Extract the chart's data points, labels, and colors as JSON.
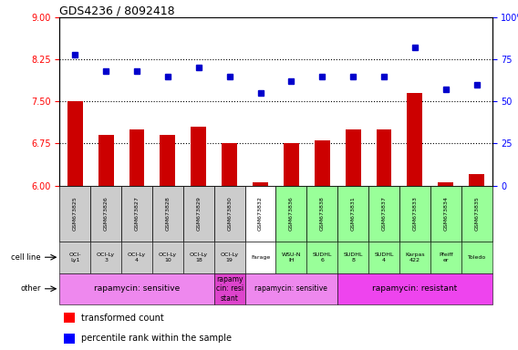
{
  "title": "GDS4236 / 8092418",
  "samples": [
    "GSM673825",
    "GSM673826",
    "GSM673827",
    "GSM673828",
    "GSM673829",
    "GSM673830",
    "GSM673832",
    "GSM673836",
    "GSM673838",
    "GSM673831",
    "GSM673837",
    "GSM673833",
    "GSM673834",
    "GSM673835"
  ],
  "bar_values": [
    7.5,
    6.9,
    7.0,
    6.9,
    7.05,
    6.75,
    6.05,
    6.75,
    6.8,
    7.0,
    7.0,
    7.65,
    6.05,
    6.2
  ],
  "dot_values": [
    78,
    68,
    68,
    65,
    70,
    65,
    55,
    62,
    65,
    65,
    65,
    82,
    57,
    60
  ],
  "ylim_left": [
    6,
    9
  ],
  "ylim_right": [
    0,
    100
  ],
  "yticks_left": [
    6,
    6.75,
    7.5,
    8.25,
    9
  ],
  "yticks_right": [
    0,
    25,
    50,
    75,
    100
  ],
  "hlines": [
    6.75,
    7.5,
    8.25
  ],
  "bar_color": "#cc0000",
  "dot_color": "#0000cc",
  "cell_line_labels": [
    "OCI-\nLy1",
    "OCI-Ly\n3",
    "OCI-Ly\n4",
    "OCI-Ly\n10",
    "OCI-Ly\n18",
    "OCI-Ly\n19",
    "Farage",
    "WSU-N\nIH",
    "SUDHL\n6",
    "SUDHL\n8",
    "SUDHL\n4",
    "Karpas\n422",
    "Pfeiff\ner",
    "Toledo"
  ],
  "cell_bg_colors": [
    "#cccccc",
    "#cccccc",
    "#cccccc",
    "#cccccc",
    "#cccccc",
    "#cccccc",
    "#ffffff",
    "#99ff99",
    "#99ff99",
    "#99ff99",
    "#99ff99",
    "#99ff99",
    "#99ff99",
    "#99ff99"
  ],
  "other_segments": [
    {
      "start": 0,
      "end": 4,
      "text": "rapamycin: sensitive",
      "color": "#ee88ee",
      "fontsize": 6.5
    },
    {
      "start": 5,
      "end": 5,
      "text": "rapamy\ncin: resi\nstant",
      "color": "#dd44cc",
      "fontsize": 5.5
    },
    {
      "start": 6,
      "end": 8,
      "text": "rapamycin: sensitive",
      "color": "#ee88ee",
      "fontsize": 5.5
    },
    {
      "start": 9,
      "end": 13,
      "text": "rapamycin: resistant",
      "color": "#ee44ee",
      "fontsize": 6.5
    }
  ]
}
